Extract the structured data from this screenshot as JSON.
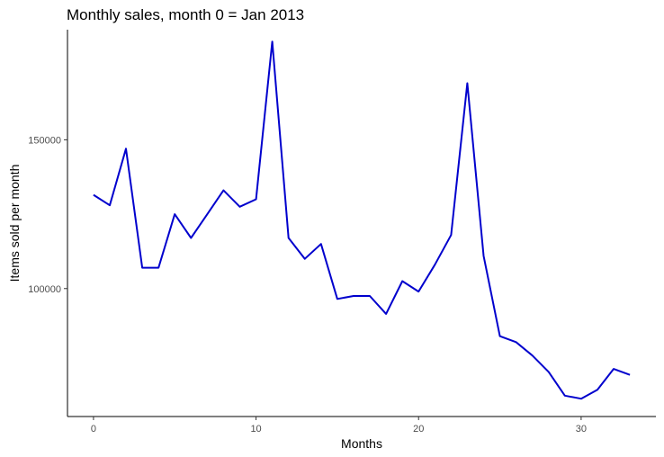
{
  "chart_data": {
    "type": "line",
    "title": "Monthly sales, month 0 = Jan 2013",
    "xlabel": "Months",
    "ylabel": "Items sold per month",
    "xlim": [
      -1.6,
      34.6
    ],
    "ylim": [
      57000,
      187000
    ],
    "x_ticks": [
      0,
      10,
      20,
      30
    ],
    "y_ticks": [
      100000,
      150000
    ],
    "x_tick_labels": [
      "0",
      "10",
      "20",
      "30"
    ],
    "y_tick_labels": [
      "100000",
      "150000"
    ],
    "grid": false,
    "line_color": "#0000cd",
    "series": [
      {
        "x": [
          0,
          1,
          2,
          3,
          4,
          5,
          6,
          7,
          8,
          9,
          10,
          11,
          12,
          13,
          14,
          15,
          16,
          17,
          18,
          19,
          20,
          21,
          22,
          23,
          24,
          25,
          26,
          27,
          28,
          29,
          30,
          31,
          32,
          33
        ],
        "values": [
          131500,
          128000,
          147000,
          107000,
          107000,
          125000,
          117000,
          125000,
          133000,
          127500,
          130000,
          183000,
          117000,
          110000,
          115000,
          96500,
          97500,
          97500,
          91500,
          102500,
          99000,
          108000,
          118000,
          169000,
          111000,
          84000,
          82000,
          77500,
          72000,
          64000,
          63000,
          66000,
          73000,
          71000
        ]
      }
    ]
  }
}
